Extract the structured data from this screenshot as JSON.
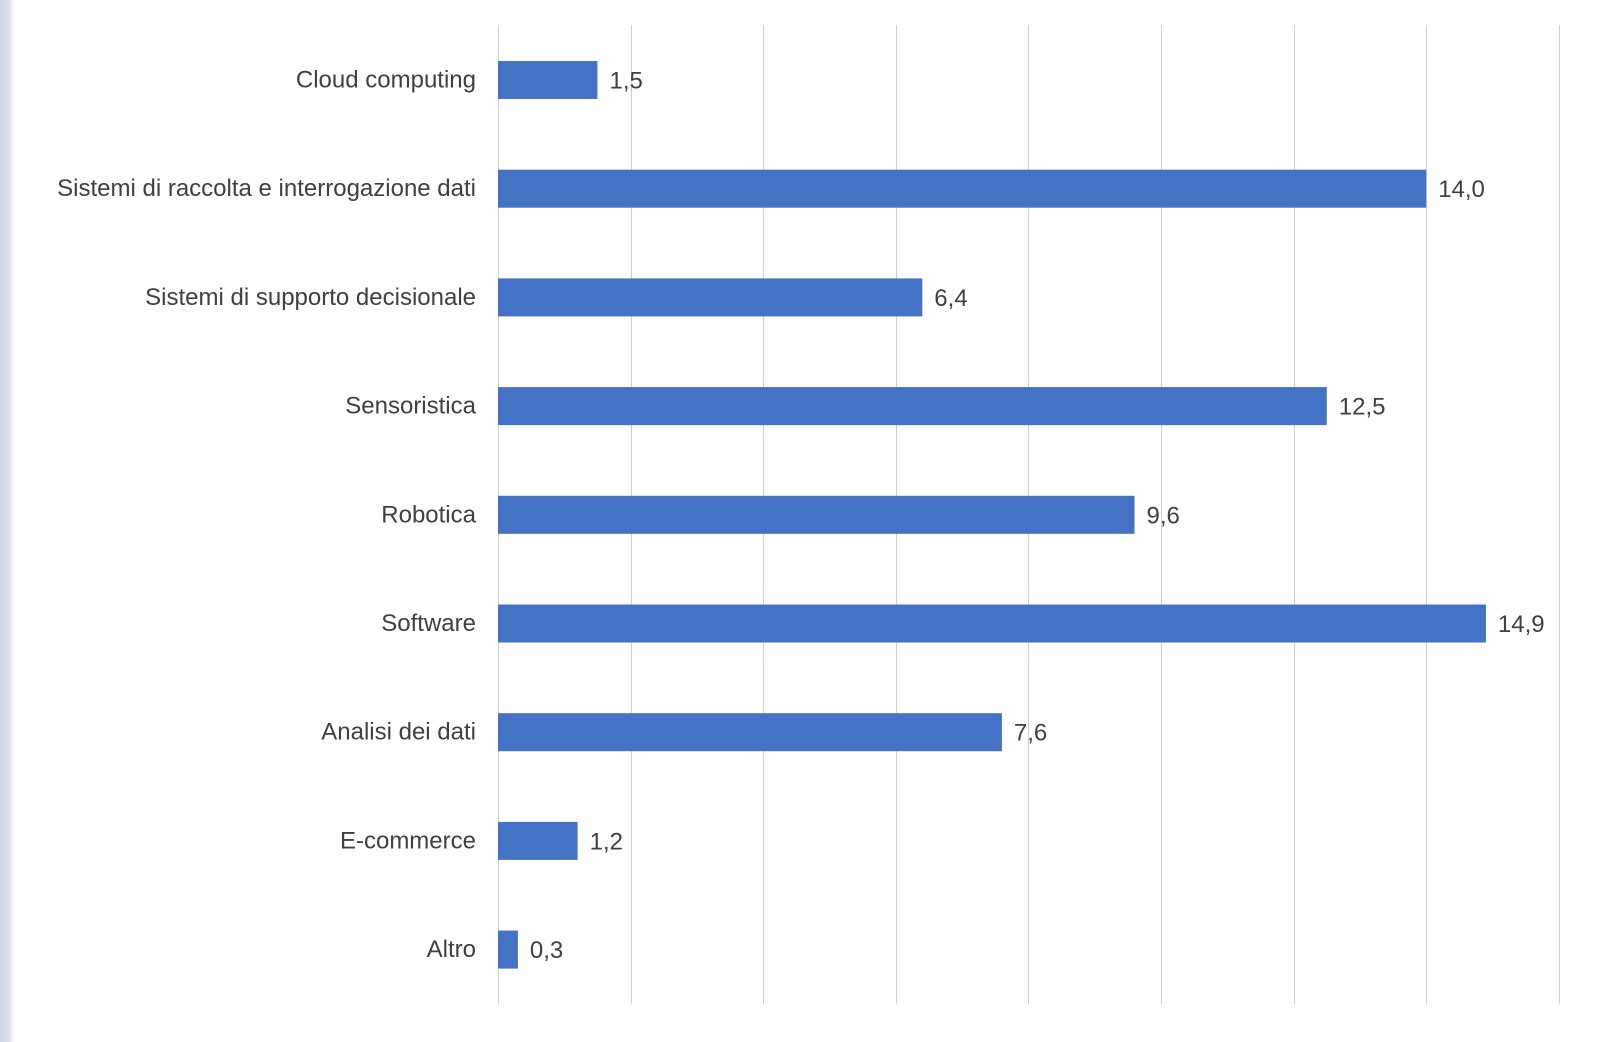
{
  "chart_data": {
    "type": "bar",
    "orientation": "horizontal",
    "title": "",
    "xlabel": "",
    "ylabel": "",
    "categories": [
      "Cloud computing",
      "Sistemi di raccolta e interrogazione dati",
      "Sistemi di supporto decisionale",
      "Sensoristica",
      "Robotica",
      "Software",
      "Analisi dei dati",
      "E-commerce",
      "Altro"
    ],
    "values": [
      1.5,
      14.0,
      6.4,
      12.5,
      9.6,
      14.9,
      7.6,
      1.2,
      0.3
    ],
    "data_labels": [
      "1,5",
      "14,0",
      "6,4",
      "12,5",
      "9,6",
      "14,9",
      "7,6",
      "1,2",
      "0,3"
    ],
    "xlim": [
      0,
      16
    ],
    "x_gridlines": [
      0,
      2,
      4,
      6,
      8,
      10,
      12,
      14,
      16
    ],
    "x_tick_labels_shown": false,
    "grid": true,
    "bar_color": "#4472C4",
    "gridline_color": "#d0d0d0",
    "label_color": "#404040"
  }
}
